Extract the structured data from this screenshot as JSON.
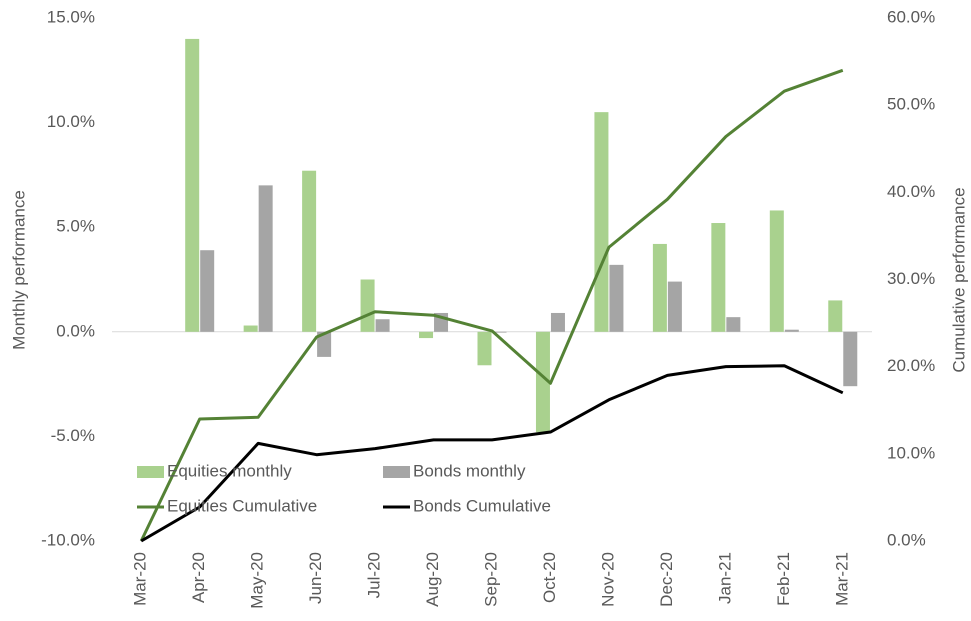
{
  "chart_data": {
    "type": "bar",
    "categories": [
      "Mar-20",
      "Apr-20",
      "May-20",
      "Jun-20",
      "Jul-20",
      "Aug-20",
      "Sep-20",
      "Oct-20",
      "Nov-20",
      "Dec-20",
      "Jan-21",
      "Feb-21",
      "Mar-21"
    ],
    "ylabel": "Monthly performance",
    "y2label": "Cumulative performance",
    "ylim": [
      -10,
      15
    ],
    "yticks": [
      {
        "value": -10,
        "label": "-10.0%"
      },
      {
        "value": -5,
        "label": "-5.0%"
      },
      {
        "value": 0,
        "label": "0.0%"
      },
      {
        "value": 5,
        "label": "5.0%"
      },
      {
        "value": 10,
        "label": "10.0%"
      },
      {
        "value": 15,
        "label": "15.0%"
      }
    ],
    "y2lim": [
      0,
      60
    ],
    "y2ticks": [
      {
        "value": 0,
        "label": "0.0%"
      },
      {
        "value": 10,
        "label": "10.0%"
      },
      {
        "value": 20,
        "label": "20.0%"
      },
      {
        "value": 30,
        "label": "30.0%"
      },
      {
        "value": 40,
        "label": "40.0%"
      },
      {
        "value": 50,
        "label": "50.0%"
      },
      {
        "value": 60,
        "label": "60.0%"
      }
    ],
    "series": [
      {
        "name": "Equities monthly",
        "type": "bar",
        "color": "#a9d18e",
        "values": [
          null,
          14.0,
          0.3,
          7.7,
          2.5,
          -0.3,
          -1.6,
          -4.8,
          10.5,
          4.2,
          5.2,
          5.8,
          1.5
        ]
      },
      {
        "name": "Bonds monthly",
        "type": "bar",
        "color": "#a5a5a5",
        "values": [
          null,
          3.9,
          7.0,
          -1.2,
          0.6,
          0.9,
          0,
          0.9,
          3.2,
          2.4,
          0.7,
          0.1,
          -2.6
        ]
      },
      {
        "name": "Equities Cumulative",
        "type": "line",
        "axis": "y2",
        "color": "#548235",
        "values": [
          0,
          14.0,
          14.2,
          23.4,
          26.3,
          25.9,
          24.1,
          18.1,
          33.7,
          39.2,
          46.4,
          51.6,
          54.0
        ]
      },
      {
        "name": "Bonds Cumulative",
        "type": "line",
        "axis": "y2",
        "color": "#000000",
        "values": [
          0,
          3.9,
          11.2,
          9.9,
          10.6,
          11.6,
          11.6,
          12.5,
          16.2,
          19.0,
          20.0,
          20.1,
          17.0
        ]
      }
    ]
  }
}
